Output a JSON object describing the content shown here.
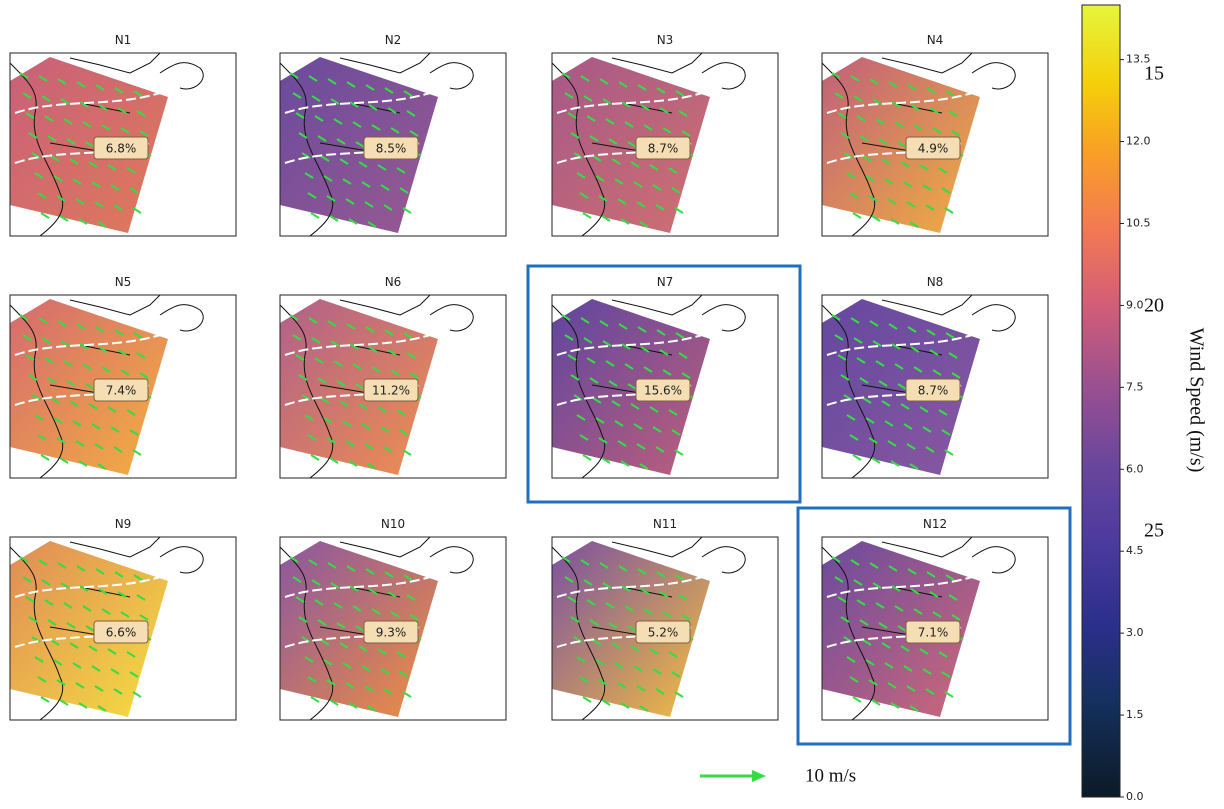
{
  "panels": [
    {
      "title": "N1",
      "label": "6.8%",
      "highlight": false
    },
    {
      "title": "N2",
      "label": "8.5%",
      "highlight": false
    },
    {
      "title": "N3",
      "label": "8.7%",
      "highlight": false
    },
    {
      "title": "N4",
      "label": "4.9%",
      "highlight": false
    },
    {
      "title": "N5",
      "label": "7.4%",
      "highlight": false
    },
    {
      "title": "N6",
      "label": "11.2%",
      "highlight": false
    },
    {
      "title": "N7",
      "label": "15.6%",
      "highlight": true
    },
    {
      "title": "N8",
      "label": "8.7%",
      "highlight": false
    },
    {
      "title": "N9",
      "label": "6.6%",
      "highlight": false
    },
    {
      "title": "N10",
      "label": "9.3%",
      "highlight": false
    },
    {
      "title": "N11",
      "label": "5.2%",
      "highlight": false
    },
    {
      "title": "N12",
      "label": "7.1%",
      "highlight": true
    }
  ],
  "colorbar": {
    "label": "Wind Speed (m/s)",
    "lim": [
      0,
      14.5
    ],
    "ticks": [
      {
        "value": 0,
        "label": "0.0"
      },
      {
        "value": 1.5,
        "label": "1.5"
      },
      {
        "value": 3,
        "label": "3.0"
      },
      {
        "value": 4.5,
        "label": "4.5"
      },
      {
        "value": 6,
        "label": "6.0"
      },
      {
        "value": 7.5,
        "label": "7.5"
      },
      {
        "value": 9,
        "label": "9.0"
      },
      {
        "value": 10.5,
        "label": "10.5"
      },
      {
        "value": 12,
        "label": "12.0"
      },
      {
        "value": 13.5,
        "label": "13.5"
      }
    ]
  },
  "overlay_labels": [
    "15",
    "20",
    "25"
  ],
  "legend": {
    "label": "10 m/s"
  }
}
